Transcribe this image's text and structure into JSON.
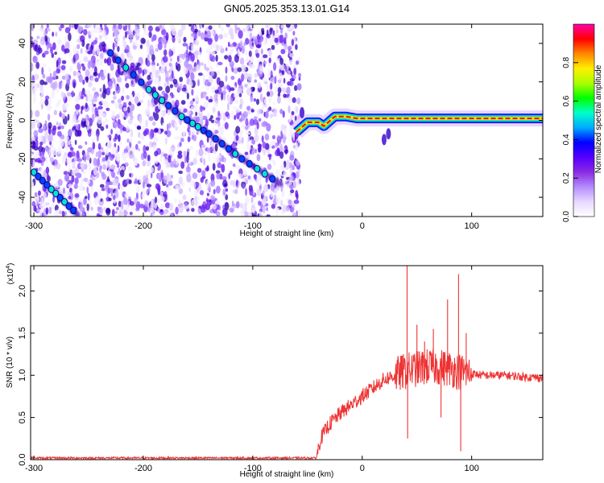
{
  "title": "GN05.2025.353.13.01.G14",
  "chart_data": [
    {
      "type": "heatmap",
      "xlabel": "Height of straight line (km)",
      "ylabel": "Frequency (Hz)",
      "xlim": [
        -303,
        165
      ],
      "ylim": [
        -50,
        50
      ],
      "xticks": [
        -300,
        -200,
        -100,
        0,
        100
      ],
      "xtick_labels": [
        "-300",
        "-200",
        "-100",
        "0",
        "100"
      ],
      "yticks": [
        -40,
        -20,
        0,
        20,
        40
      ],
      "ytick_labels": [
        "-40",
        "-20",
        "0",
        "20",
        "40"
      ],
      "noise_region_x": [
        -303,
        -57
      ],
      "streaks": [
        {
          "name": "diagonal-streak-1",
          "points": [
            [
              -230,
              35
            ],
            [
              -195,
              16
            ],
            [
              -165,
              2
            ],
            [
              -140,
              -7
            ],
            [
              -110,
              -20
            ],
            [
              -75,
              -33
            ]
          ]
        },
        {
          "name": "diagonal-streak-2",
          "points": [
            [
              -300,
              -27
            ],
            [
              -280,
              -38
            ],
            [
              -260,
              -49
            ]
          ]
        }
      ],
      "signal_line": [
        [
          -60,
          -6
        ],
        [
          -50,
          -1
        ],
        [
          -40,
          -1
        ],
        [
          -35,
          -3
        ],
        [
          -25,
          2
        ],
        [
          -15,
          2
        ],
        [
          -5,
          1
        ],
        [
          10,
          1
        ],
        [
          40,
          1
        ],
        [
          70,
          1
        ],
        [
          100,
          1
        ],
        [
          130,
          1
        ],
        [
          165,
          1
        ]
      ],
      "colorbar": {
        "label": "Normalized spectral amplitude",
        "ticks": [
          0.0,
          0.2,
          0.4,
          0.6,
          0.8
        ],
        "tick_labels": [
          "0.0",
          "0.2",
          "0.4",
          "0.6",
          "0.8"
        ],
        "range": [
          0,
          1
        ],
        "colors": [
          "#ffffff",
          "#e8d8ff",
          "#b48cff",
          "#8a2be2",
          "#5500ff",
          "#0000ff",
          "#00aaff",
          "#00ffcc",
          "#00ff00",
          "#aaff00",
          "#ffee00",
          "#ff8800",
          "#ff0000",
          "#ff00aa"
        ]
      }
    },
    {
      "type": "line",
      "xlabel": "Height of straight line (km)",
      "ylabel": "SNR (10 * v/v)",
      "scale_label": "(x10",
      "scale_exp": "4",
      "scale_close": ")",
      "xlim": [
        -303,
        165
      ],
      "ylim": [
        0,
        2.3
      ],
      "xticks": [
        -300,
        -200,
        -100,
        0,
        100
      ],
      "xtick_labels": [
        "-300",
        "-200",
        "-100",
        "0",
        "100"
      ],
      "yticks": [
        0.0,
        0.5,
        1.0,
        1.5,
        2.0
      ],
      "ytick_labels": [
        "0.0",
        "0.5",
        "1.0",
        "1.5",
        "2.0"
      ],
      "color": "#ee3333",
      "series": [
        {
          "name": "snr",
          "x": [
            -303,
            -250,
            -200,
            -150,
            -100,
            -60,
            -42,
            -38,
            -30,
            -20,
            -10,
            0,
            10,
            20,
            30,
            40,
            50,
            60,
            70,
            80,
            88,
            95,
            110,
            130,
            150,
            165
          ],
          "values": [
            0.02,
            0.02,
            0.02,
            0.02,
            0.02,
            0.02,
            0.02,
            0.25,
            0.42,
            0.55,
            0.65,
            0.75,
            0.85,
            0.95,
            1.0,
            1.05,
            1.08,
            1.1,
            1.1,
            1.08,
            1.05,
            1.03,
            1.0,
            1.0,
            0.98,
            0.97
          ]
        }
      ],
      "spikes": [
        [
          41,
          2.35
        ],
        [
          41.5,
          0.25
        ],
        [
          50,
          1.6
        ],
        [
          57,
          1.4
        ],
        [
          78,
          1.9
        ],
        [
          88,
          2.2
        ],
        [
          90,
          0.1
        ],
        [
          95,
          1.5
        ],
        [
          72,
          0.5
        ],
        [
          65,
          1.55
        ]
      ]
    }
  ]
}
